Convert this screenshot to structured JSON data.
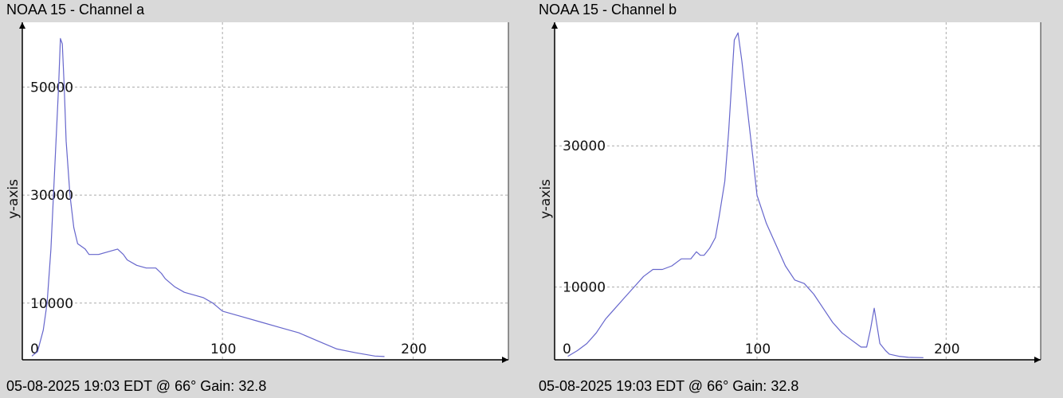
{
  "chart_data": [
    {
      "type": "line",
      "title": "NOAA 15 - Channel a",
      "footer": "05-08-2025 19:03 EDT @ 66° Gain: 32.8",
      "xlabel": "",
      "ylabel": "y-axis",
      "xlim": [
        -5,
        250
      ],
      "ylim": [
        -500,
        62000
      ],
      "x_ticks": [
        0,
        100,
        200
      ],
      "y_ticks": [
        10000,
        30000,
        50000
      ],
      "grid": true,
      "series": [
        {
          "color": "#6666cc",
          "x": [
            0,
            3,
            6,
            8,
            10,
            12,
            14,
            15,
            16,
            17,
            18,
            20,
            22,
            24,
            26,
            28,
            30,
            35,
            40,
            45,
            48,
            50,
            55,
            60,
            65,
            68,
            70,
            75,
            80,
            85,
            90,
            95,
            100,
            110,
            120,
            130,
            140,
            150,
            160,
            170,
            180,
            185
          ],
          "values": [
            200,
            1000,
            5000,
            10000,
            20000,
            35000,
            50000,
            59000,
            58000,
            50000,
            40000,
            30000,
            24000,
            21000,
            20500,
            20000,
            19000,
            19000,
            19500,
            20000,
            19000,
            18000,
            17000,
            16500,
            16500,
            15500,
            14500,
            13000,
            12000,
            11500,
            11000,
            10000,
            8500,
            7500,
            6500,
            5500,
            4500,
            3000,
            1500,
            800,
            200,
            100
          ]
        }
      ]
    },
    {
      "type": "line",
      "title": "NOAA 15 - Channel b",
      "footer": "05-08-2025 19:03 EDT @ 66° Gain: 32.8",
      "xlabel": "",
      "ylabel": "y-axis",
      "xlim": [
        -7,
        250
      ],
      "ylim": [
        -300,
        47500
      ],
      "x_ticks": [
        0,
        100,
        200
      ],
      "y_ticks": [
        10000,
        30000
      ],
      "grid": true,
      "series": [
        {
          "color": "#6666cc",
          "x": [
            0,
            5,
            10,
            15,
            20,
            25,
            30,
            35,
            40,
            45,
            50,
            55,
            60,
            65,
            68,
            70,
            72,
            75,
            78,
            80,
            83,
            85,
            88,
            90,
            92,
            95,
            98,
            100,
            105,
            110,
            115,
            120,
            125,
            130,
            135,
            140,
            145,
            150,
            155,
            158,
            160,
            162,
            165,
            168,
            170,
            175,
            180,
            188
          ],
          "values": [
            200,
            1000,
            2000,
            3500,
            5500,
            7000,
            8500,
            10000,
            11500,
            12500,
            12500,
            13000,
            14000,
            14000,
            15000,
            14500,
            14500,
            15500,
            17000,
            20000,
            25000,
            32000,
            45000,
            46000,
            42000,
            35000,
            28000,
            23000,
            19000,
            16000,
            13000,
            11000,
            10500,
            9000,
            7000,
            5000,
            3500,
            2500,
            1500,
            1500,
            4000,
            7000,
            2000,
            1000,
            500,
            200,
            50,
            0
          ]
        }
      ]
    }
  ]
}
